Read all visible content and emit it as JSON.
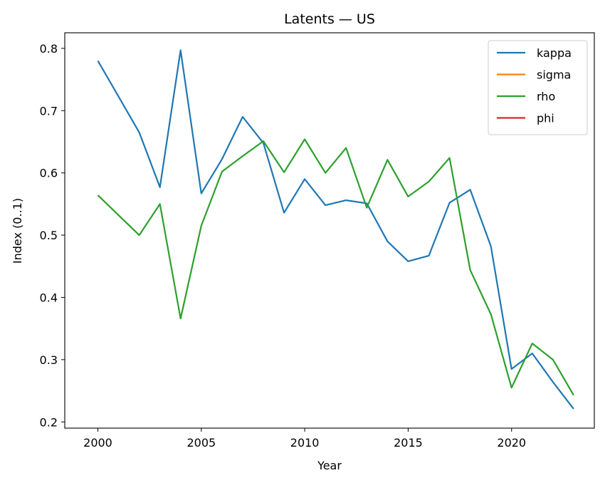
{
  "chart_data": {
    "type": "line",
    "title": "Latents — US",
    "xlabel": "Year",
    "ylabel": "Index (0..1)",
    "xlim": [
      1998.4,
      2024.0
    ],
    "ylim": [
      0.19,
      0.825
    ],
    "xticks": [
      2000,
      2005,
      2010,
      2015,
      2020
    ],
    "yticks": [
      0.2,
      0.3,
      0.4,
      0.5,
      0.6,
      0.7,
      0.8
    ],
    "grid": false,
    "legend_position": "top-right",
    "x": [
      2000,
      2002,
      2003,
      2004,
      2005,
      2006,
      2007,
      2008,
      2009,
      2010,
      2011,
      2012,
      2013,
      2014,
      2015,
      2016,
      2017,
      2018,
      2019,
      2020,
      2021,
      2022,
      2023
    ],
    "series": [
      {
        "name": "kappa",
        "color": "#1f77b4",
        "values": [
          0.78,
          0.665,
          0.577,
          0.797,
          0.567,
          0.622,
          0.69,
          0.648,
          0.536,
          0.59,
          0.548,
          0.556,
          0.551,
          0.49,
          0.458,
          0.467,
          0.552,
          0.573,
          0.482,
          0.285,
          0.31,
          0.264,
          0.221
        ]
      },
      {
        "name": "sigma",
        "color": "#ff7f0e",
        "values": [
          null,
          null,
          null,
          null,
          null,
          null,
          null,
          null,
          null,
          null,
          null,
          null,
          null,
          null,
          null,
          null,
          null,
          null,
          null,
          null,
          null,
          null,
          null
        ]
      },
      {
        "name": "rho",
        "color": "#2ca02c",
        "values": [
          0.564,
          0.5,
          0.55,
          0.366,
          0.515,
          0.602,
          0.627,
          0.651,
          0.601,
          0.654,
          0.6,
          0.64,
          0.544,
          0.621,
          0.562,
          0.586,
          0.624,
          0.444,
          0.373,
          0.255,
          0.326,
          0.3,
          0.243
        ]
      },
      {
        "name": "phi",
        "color": "#d62728",
        "values": [
          null,
          null,
          null,
          null,
          null,
          null,
          null,
          null,
          null,
          null,
          null,
          null,
          null,
          null,
          null,
          null,
          null,
          null,
          null,
          null,
          null,
          null,
          null
        ]
      }
    ]
  }
}
